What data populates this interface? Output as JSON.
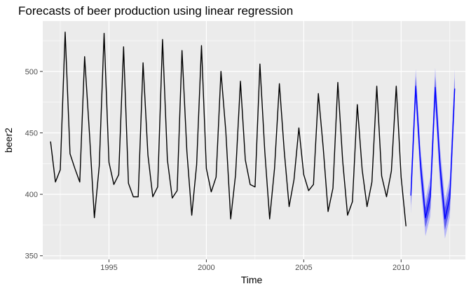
{
  "chart_data": {
    "type": "line",
    "title": "Forecasts of beer production using linear regression",
    "xlabel": "Time",
    "ylabel": "beer2",
    "xlim": [
      1991.6,
      2013.3
    ],
    "ylim": [
      347,
      541
    ],
    "x_ticks": [
      1995,
      2000,
      2005,
      2010
    ],
    "y_ticks": [
      350,
      400,
      450,
      500
    ],
    "x_tick_labels": [
      "1995",
      "2000",
      "2005",
      "2010"
    ],
    "y_tick_labels": [
      "350",
      "400",
      "450",
      "500"
    ],
    "grid": true,
    "colors": {
      "panel": "#ebebeb",
      "grid_major": "#ffffff",
      "series": "#000000",
      "forecast_line": "#0000ff",
      "pi80": "#5a5af0",
      "pi95": "#b3b3f7"
    },
    "series": [
      {
        "start": 1992.0,
        "frequency": 4,
        "values": [
          443,
          410,
          420,
          532,
          433,
          421,
          410,
          512,
          449,
          381,
          423,
          531,
          426,
          408,
          416,
          520,
          409,
          398,
          398,
          507,
          432,
          398,
          406,
          526,
          428,
          397,
          403,
          517,
          435,
          383,
          424,
          521,
          421,
          402,
          414,
          500,
          451,
          380,
          416,
          492,
          428,
          408,
          406,
          506,
          435,
          380,
          421,
          490,
          435,
          390,
          412,
          454,
          416,
          403,
          408,
          482,
          438,
          386,
          405,
          491,
          427,
          383,
          394,
          473,
          420,
          390,
          410,
          488,
          415,
          398,
          419,
          488,
          414,
          374
        ]
      }
    ],
    "forecast": {
      "start": 2010.5,
      "frequency": 4,
      "mean": [
        399,
        488,
        423,
        381,
        398,
        487,
        422,
        380,
        397,
        486
      ],
      "lo80": [
        391,
        480,
        415,
        373,
        389,
        478,
        413,
        371,
        388,
        477
      ],
      "hi80": [
        407,
        496,
        431,
        389,
        407,
        496,
        431,
        389,
        406,
        495
      ],
      "lo95": [
        384,
        474,
        409,
        366,
        382,
        471,
        406,
        364,
        381,
        470
      ],
      "hi95": [
        414,
        502,
        437,
        396,
        414,
        503,
        438,
        396,
        413,
        502
      ]
    }
  }
}
